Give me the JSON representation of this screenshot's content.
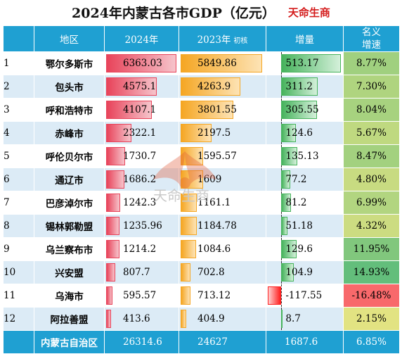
{
  "title": "2024年内蒙古各市GDP（亿元）",
  "brand": "天命生商",
  "columns": {
    "region": "地区",
    "y2024": "2024年",
    "y2023": "2023年",
    "y2023_note": "初核",
    "increase": "增量",
    "rate": "名义增速"
  },
  "chart_data": {
    "type": "table",
    "rows": [
      {
        "rank": "1",
        "city": "鄂尔多斯市",
        "gdp2024": "6363.03",
        "gdp2023": "5849.86",
        "increase": "513.17",
        "rate": "8.77%"
      },
      {
        "rank": "2",
        "city": "包头市",
        "gdp2024": "4575.1",
        "gdp2023": "4263.9",
        "increase": "311.2",
        "rate": "7.30%"
      },
      {
        "rank": "3",
        "city": "呼和浩特市",
        "gdp2024": "4107.1",
        "gdp2023": "3801.55",
        "increase": "305.55",
        "rate": "8.04%"
      },
      {
        "rank": "4",
        "city": "赤峰市",
        "gdp2024": "2322.1",
        "gdp2023": "2197.5",
        "increase": "124.6",
        "rate": "5.67%"
      },
      {
        "rank": "5",
        "city": "呼伦贝尔市",
        "gdp2024": "1730.7",
        "gdp2023": "1595.57",
        "increase": "135.13",
        "rate": "8.47%"
      },
      {
        "rank": "6",
        "city": "通辽市",
        "gdp2024": "1686.2",
        "gdp2023": "1609",
        "increase": "77.2",
        "rate": "4.80%"
      },
      {
        "rank": "7",
        "city": "巴彦淖尔市",
        "gdp2024": "1242.3",
        "gdp2023": "1161.1",
        "increase": "81.2",
        "rate": "6.99%"
      },
      {
        "rank": "8",
        "city": "锡林郭勒盟",
        "gdp2024": "1235.96",
        "gdp2023": "1184.78",
        "increase": "51.18",
        "rate": "4.32%"
      },
      {
        "rank": "9",
        "city": "乌兰察布市",
        "gdp2024": "1214.2",
        "gdp2023": "1084.6",
        "increase": "129.6",
        "rate": "11.95%"
      },
      {
        "rank": "10",
        "city": "兴安盟",
        "gdp2024": "807.7",
        "gdp2023": "702.8",
        "increase": "104.9",
        "rate": "14.93%"
      },
      {
        "rank": "11",
        "city": "乌海市",
        "gdp2024": "595.57",
        "gdp2023": "713.12",
        "increase": "-117.55",
        "rate": "-16.48%"
      },
      {
        "rank": "12",
        "city": "阿拉善盟",
        "gdp2024": "413.6",
        "gdp2023": "404.9",
        "increase": "8.7",
        "rate": "2.15%"
      }
    ],
    "total": {
      "city": "内蒙古自治区",
      "gdp2024": "26314.6",
      "gdp2023": "24627",
      "increase": "1687.6",
      "rate": "6.85%"
    },
    "rate_colors": {
      "low": "#f8696b",
      "mid": "#ffeb84",
      "high": "#63be7b"
    }
  },
  "watermark_text": "天命生商"
}
